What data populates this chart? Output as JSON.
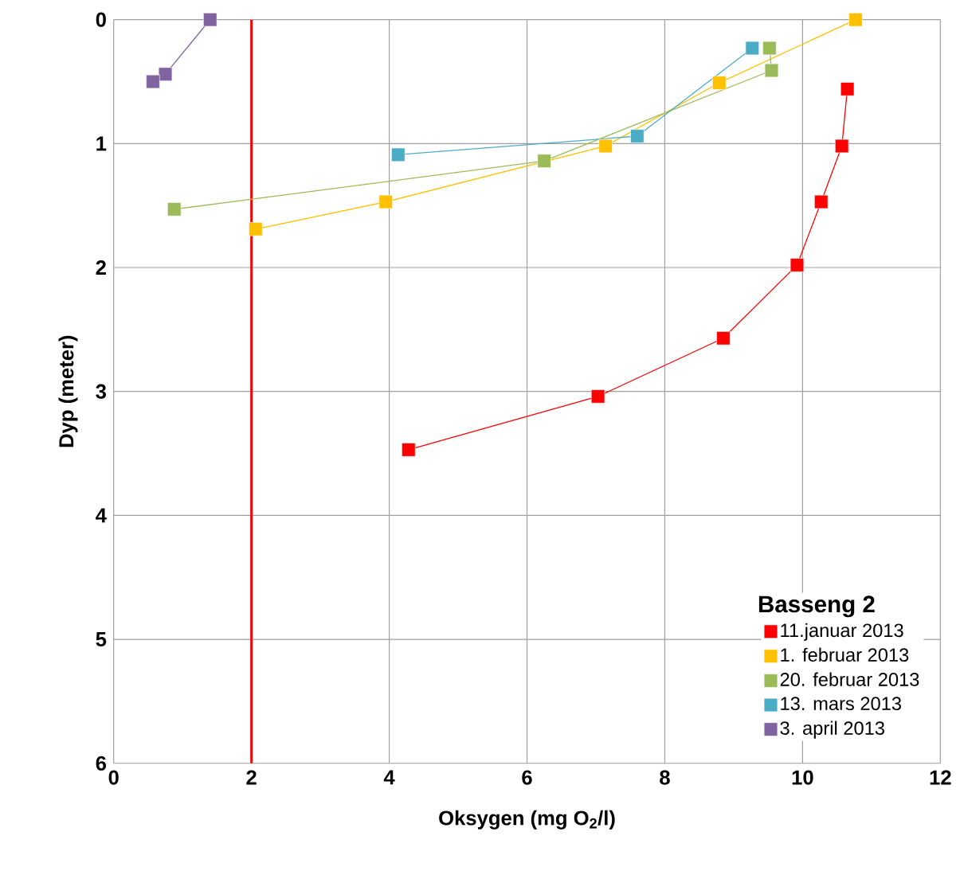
{
  "chart_data": {
    "type": "line",
    "xlabel": "Oksygen (mg O$_{2}$/l)",
    "ylabel": "Dyp (meter)",
    "legend_title": "Basseng 2",
    "xlim": [
      0,
      12
    ],
    "xticks": [
      0,
      2,
      4,
      6,
      8,
      10,
      12
    ],
    "ylim": [
      6,
      0
    ],
    "yticks": [
      0,
      1,
      2,
      3,
      4,
      5,
      6
    ],
    "grid": true,
    "legend": "bottom right",
    "marker": "square",
    "line_style": "solid",
    "ref_lines": [
      {
        "axis": "x",
        "value": 2,
        "color": "#ff0000"
      }
    ],
    "series": [
      {
        "name": "11.januar 2013",
        "color": "#ff0000",
        "x": [
          4.28,
          7.03,
          8.85,
          9.92,
          10.27,
          10.57,
          10.65
        ],
        "values": [
          3.47,
          3.04,
          2.57,
          1.98,
          1.47,
          1.02,
          0.56
        ]
      },
      {
        "name": "1. februar 2013",
        "color": "#ffc000",
        "x": [
          10.77,
          8.79,
          7.14,
          3.95,
          2.06
        ],
        "values": [
          0,
          0.51,
          1.02,
          1.47,
          1.69
        ]
      },
      {
        "name": "20. februar 2013",
        "color": "#9bbb59",
        "x": [
          9.52,
          9.55,
          6.25,
          0.88
        ],
        "values": [
          0.23,
          0.41,
          1.14,
          1.53
        ]
      },
      {
        "name": "13. mars 2013",
        "color": "#4bacc6",
        "x": [
          9.27,
          7.6,
          4.13
        ],
        "values": [
          0.23,
          0.94,
          1.09
        ]
      },
      {
        "name": "3. april 2013",
        "color": "#8064a2",
        "x": [
          1.4,
          0.75,
          0.57
        ],
        "values": [
          0,
          0.44,
          0.5
        ]
      }
    ]
  }
}
